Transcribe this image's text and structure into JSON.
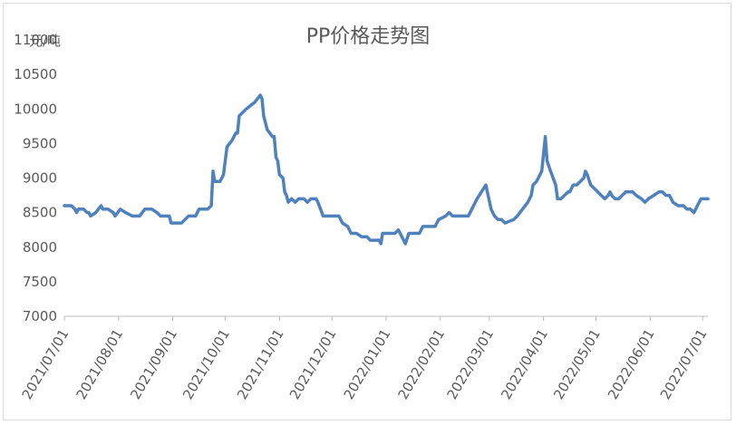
{
  "chart_data": {
    "type": "line",
    "title": "PP价格走势图",
    "y_unit": "元/吨",
    "xlabel": "",
    "ylabel": "",
    "ylim": [
      7000,
      11000
    ],
    "yticks": [
      7000,
      7500,
      8000,
      8500,
      9000,
      9500,
      10000,
      10500,
      11000
    ],
    "xlim": [
      "2021-07-01",
      "2022-07-04"
    ],
    "xticks": [
      "2021/07/01",
      "2021/08/01",
      "2021/09/01",
      "2021/10/01",
      "2021/11/01",
      "2021/12/01",
      "2022/01/01",
      "2022/02/01",
      "2022/03/01",
      "2022/04/01",
      "2022/05/01",
      "2022/06/01",
      "2022/07/01"
    ],
    "grid": false,
    "legend": "none",
    "colors": {
      "line": "#4f81bd",
      "axis": "#bfbfbf",
      "text": "#595959"
    },
    "series": [
      {
        "points": [
          [
            "2021-07-01",
            8600
          ],
          [
            "2021-07-05",
            8600
          ],
          [
            "2021-07-07",
            8550
          ],
          [
            "2021-07-08",
            8500
          ],
          [
            "2021-07-09",
            8550
          ],
          [
            "2021-07-12",
            8550
          ],
          [
            "2021-07-14",
            8500
          ],
          [
            "2021-07-15",
            8500
          ],
          [
            "2021-07-16",
            8450
          ],
          [
            "2021-07-19",
            8500
          ],
          [
            "2021-07-22",
            8600
          ],
          [
            "2021-07-23",
            8550
          ],
          [
            "2021-07-26",
            8550
          ],
          [
            "2021-07-29",
            8500
          ],
          [
            "2021-07-30",
            8450
          ],
          [
            "2021-08-02",
            8550
          ],
          [
            "2021-08-05",
            8500
          ],
          [
            "2021-08-09",
            8450
          ],
          [
            "2021-08-13",
            8450
          ],
          [
            "2021-08-16",
            8550
          ],
          [
            "2021-08-20",
            8550
          ],
          [
            "2021-08-23",
            8500
          ],
          [
            "2021-08-25",
            8450
          ],
          [
            "2021-08-27",
            8450
          ],
          [
            "2021-08-30",
            8450
          ],
          [
            "2021-08-31",
            8350
          ],
          [
            "2021-09-06",
            8350
          ],
          [
            "2021-09-08",
            8400
          ],
          [
            "2021-09-10",
            8450
          ],
          [
            "2021-09-14",
            8450
          ],
          [
            "2021-09-16",
            8550
          ],
          [
            "2021-09-21",
            8550
          ],
          [
            "2021-09-23",
            8600
          ],
          [
            "2021-09-24",
            9100
          ],
          [
            "2021-09-25",
            8950
          ],
          [
            "2021-09-28",
            8950
          ],
          [
            "2021-09-30",
            9050
          ],
          [
            "2021-10-02",
            9450
          ],
          [
            "2021-10-05",
            9550
          ],
          [
            "2021-10-07",
            9650
          ],
          [
            "2021-10-08",
            9650
          ],
          [
            "2021-10-09",
            9900
          ],
          [
            "2021-10-13",
            10000
          ],
          [
            "2021-10-18",
            10100
          ],
          [
            "2021-10-21",
            10200
          ],
          [
            "2021-10-22",
            10150
          ],
          [
            "2021-10-23",
            9900
          ],
          [
            "2021-10-25",
            9700
          ],
          [
            "2021-10-28",
            9600
          ],
          [
            "2021-10-29",
            9600
          ],
          [
            "2021-10-30",
            9300
          ],
          [
            "2021-10-31",
            9250
          ],
          [
            "2021-11-01",
            9050
          ],
          [
            "2021-11-03",
            9000
          ],
          [
            "2021-11-04",
            8800
          ],
          [
            "2021-11-05",
            8750
          ],
          [
            "2021-11-06",
            8650
          ],
          [
            "2021-11-08",
            8700
          ],
          [
            "2021-11-10",
            8650
          ],
          [
            "2021-11-12",
            8700
          ],
          [
            "2021-11-15",
            8700
          ],
          [
            "2021-11-17",
            8650
          ],
          [
            "2021-11-19",
            8700
          ],
          [
            "2021-11-22",
            8700
          ],
          [
            "2021-11-23",
            8650
          ],
          [
            "2021-11-26",
            8450
          ],
          [
            "2021-11-30",
            8450
          ],
          [
            "2021-12-05",
            8450
          ],
          [
            "2021-12-07",
            8350
          ],
          [
            "2021-12-10",
            8300
          ],
          [
            "2021-12-12",
            8200
          ],
          [
            "2021-12-15",
            8200
          ],
          [
            "2021-12-18",
            8150
          ],
          [
            "2021-12-21",
            8150
          ],
          [
            "2021-12-23",
            8100
          ],
          [
            "2021-12-28",
            8100
          ],
          [
            "2021-12-29",
            8050
          ],
          [
            "2021-12-30",
            8200
          ],
          [
            "2022-01-03",
            8200
          ],
          [
            "2022-01-06",
            8200
          ],
          [
            "2022-01-08",
            8250
          ],
          [
            "2022-01-10",
            8150
          ],
          [
            "2022-01-12",
            8050
          ],
          [
            "2022-01-14",
            8200
          ],
          [
            "2022-01-18",
            8200
          ],
          [
            "2022-01-20",
            8200
          ],
          [
            "2022-01-22",
            8300
          ],
          [
            "2022-01-26",
            8300
          ],
          [
            "2022-01-29",
            8300
          ],
          [
            "2022-01-31",
            8400
          ],
          [
            "2022-02-04",
            8450
          ],
          [
            "2022-02-06",
            8500
          ],
          [
            "2022-02-08",
            8450
          ],
          [
            "2022-02-10",
            8450
          ],
          [
            "2022-02-14",
            8450
          ],
          [
            "2022-02-17",
            8450
          ],
          [
            "2022-02-22",
            8700
          ],
          [
            "2022-02-27",
            8900
          ],
          [
            "2022-03-02",
            8550
          ],
          [
            "2022-03-04",
            8450
          ],
          [
            "2022-03-06",
            8400
          ],
          [
            "2022-03-08",
            8400
          ],
          [
            "2022-03-10",
            8350
          ],
          [
            "2022-03-15",
            8400
          ],
          [
            "2022-03-17",
            8450
          ],
          [
            "2022-03-20",
            8550
          ],
          [
            "2022-03-23",
            8650
          ],
          [
            "2022-03-25",
            8750
          ],
          [
            "2022-03-26",
            8900
          ],
          [
            "2022-03-28",
            8950
          ],
          [
            "2022-03-30",
            9050
          ],
          [
            "2022-03-31",
            9100
          ],
          [
            "2022-04-02",
            9600
          ],
          [
            "2022-04-03",
            9250
          ],
          [
            "2022-04-05",
            9100
          ],
          [
            "2022-04-08",
            8900
          ],
          [
            "2022-04-09",
            8700
          ],
          [
            "2022-04-11",
            8700
          ],
          [
            "2022-04-13",
            8750
          ],
          [
            "2022-04-15",
            8800
          ],
          [
            "2022-04-16",
            8800
          ],
          [
            "2022-04-18",
            8900
          ],
          [
            "2022-04-20",
            8900
          ],
          [
            "2022-04-22",
            8950
          ],
          [
            "2022-04-24",
            9000
          ],
          [
            "2022-04-25",
            9100
          ],
          [
            "2022-04-26",
            9050
          ],
          [
            "2022-04-28",
            8900
          ],
          [
            "2022-04-30",
            8850
          ],
          [
            "2022-05-02",
            8800
          ],
          [
            "2022-05-04",
            8750
          ],
          [
            "2022-05-06",
            8700
          ],
          [
            "2022-05-08",
            8750
          ],
          [
            "2022-05-09",
            8800
          ],
          [
            "2022-05-10",
            8750
          ],
          [
            "2022-05-12",
            8700
          ],
          [
            "2022-05-14",
            8700
          ],
          [
            "2022-05-16",
            8750
          ],
          [
            "2022-05-18",
            8800
          ],
          [
            "2022-05-20",
            8800
          ],
          [
            "2022-05-22",
            8800
          ],
          [
            "2022-05-24",
            8750
          ],
          [
            "2022-05-27",
            8700
          ],
          [
            "2022-05-29",
            8650
          ],
          [
            "2022-05-31",
            8700
          ],
          [
            "2022-06-03",
            8750
          ],
          [
            "2022-06-06",
            8800
          ],
          [
            "2022-06-08",
            8800
          ],
          [
            "2022-06-10",
            8750
          ],
          [
            "2022-06-12",
            8750
          ],
          [
            "2022-06-14",
            8650
          ],
          [
            "2022-06-17",
            8600
          ],
          [
            "2022-06-20",
            8600
          ],
          [
            "2022-06-22",
            8550
          ],
          [
            "2022-06-24",
            8550
          ],
          [
            "2022-06-26",
            8500
          ],
          [
            "2022-06-28",
            8600
          ],
          [
            "2022-06-30",
            8700
          ],
          [
            "2022-07-02",
            8700
          ],
          [
            "2022-07-04",
            8700
          ]
        ]
      }
    ]
  }
}
